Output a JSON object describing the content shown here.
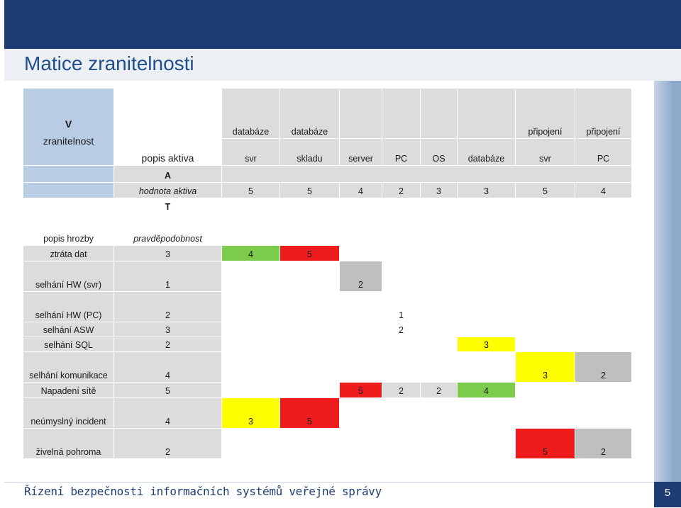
{
  "slide": {
    "title": "Matice zranitelnosti",
    "footer": "Řízení bezpečnosti informačních systémů veřejné správy",
    "page_number": "5"
  },
  "matrix": {
    "corner_v": "V",
    "corner_z": "zranitelnost",
    "asset_desc_label": "popis aktiva",
    "asset_top": [
      "databáze",
      "databáze",
      "",
      "",
      "",
      "",
      "připojení",
      "připojení"
    ],
    "asset_bottom": [
      "svr",
      "skladu",
      "server",
      "PC",
      "OS",
      "databáze",
      "svr",
      "PC"
    ],
    "a_label": "A",
    "value_label": "hodnota aktiva",
    "asset_values": [
      "5",
      "5",
      "4",
      "2",
      "3",
      "3",
      "5",
      "4"
    ],
    "t_label": "T",
    "threat_desc_label": "popis hrozby",
    "probability_label": "pravděpodobnost",
    "threats": [
      {
        "name": "ztráta dat",
        "p": "3",
        "cells": [
          "4",
          "5",
          "",
          "",
          "",
          "",
          "",
          ""
        ]
      },
      {
        "name": "selhání HW (svr)",
        "p": "1",
        "cells": [
          "",
          "",
          "2",
          "",
          "",
          "",
          "",
          ""
        ]
      },
      {
        "name": "selhání HW (PC)",
        "p": "2",
        "cells": [
          "",
          "",
          "",
          "1",
          "",
          "",
          "",
          ""
        ]
      },
      {
        "name": "selhání ASW",
        "p": "3",
        "cells": [
          "",
          "",
          "",
          "2",
          "",
          "",
          "",
          ""
        ]
      },
      {
        "name": "selhání SQL",
        "p": "2",
        "cells": [
          "",
          "",
          "",
          "",
          "",
          "3",
          "",
          ""
        ]
      },
      {
        "name": "selhání komunikace",
        "p": "4",
        "cells": [
          "",
          "",
          "",
          "",
          "",
          "",
          "3",
          "2"
        ]
      },
      {
        "name": "Napadení sítě",
        "p": "5",
        "cells": [
          "",
          "",
          "5",
          "2",
          "2",
          "4",
          "",
          ""
        ]
      },
      {
        "name": "neúmyslný incident",
        "p": "4",
        "cells": [
          "3",
          "5",
          "",
          "",
          "",
          "",
          "",
          ""
        ]
      },
      {
        "name": "živelná pohroma",
        "p": "2",
        "cells": [
          "",
          "",
          "",
          "",
          "",
          "",
          "5",
          "2"
        ]
      }
    ],
    "colors": {
      "green": "#7ccb4c",
      "red": "#ee1c1c",
      "yellow": "#ffff00",
      "gray": "#bfbfbf",
      "header_blue": "#b8cce4"
    }
  }
}
